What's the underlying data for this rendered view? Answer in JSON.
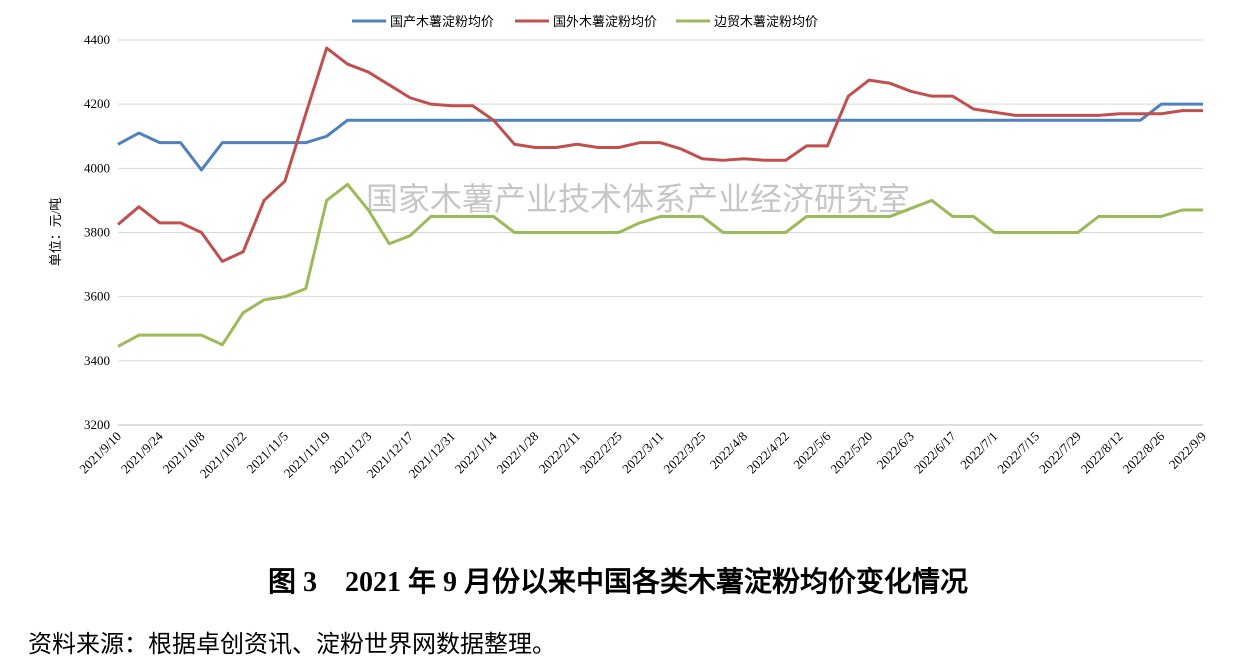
{
  "chart_data": {
    "type": "line",
    "title": "图 3　2021 年 9 月份以来中国各类木薯淀粉均价变化情况",
    "source": "资料来源：根据卓创资讯、淀粉世界网数据整理。",
    "watermark": "国家木薯产业技术体系产业经济研究室",
    "y_label": "单位：元/吨",
    "legend": "top",
    "grid": true,
    "categories": [
      "2021/9/10",
      null,
      "2021/9/24",
      null,
      "2021/10/8",
      null,
      "2021/10/22",
      null,
      "2021/11/5",
      null,
      "2021/11/19",
      null,
      "2021/12/3",
      null,
      "2021/12/17",
      null,
      "2021/12/31",
      null,
      "2022/1/14",
      null,
      "2022/1/28",
      null,
      "2022/2/11",
      null,
      "2022/2/25",
      null,
      "2022/3/11",
      null,
      "2022/3/25",
      null,
      "2022/4/8",
      null,
      "2022/4/22",
      null,
      "2022/5/6",
      null,
      "2022/5/20",
      null,
      "2022/6/3",
      null,
      "2022/6/17",
      null,
      "2022/7/1",
      null,
      "2022/7/15",
      null,
      "2022/7/29",
      null,
      "2022/8/12",
      null,
      "2022/8/26",
      null,
      "2022/9/9"
    ],
    "ylim": [
      3200,
      4400
    ],
    "yticks": [
      3200,
      3400,
      3600,
      3800,
      4000,
      4200,
      4400
    ],
    "series": [
      {
        "name": "国产木薯淀粉均价",
        "color": "#4f81bd",
        "values": [
          4075,
          4110,
          4080,
          4080,
          3995,
          4080,
          4080,
          4080,
          4080,
          4080,
          4100,
          4150,
          4150,
          4150,
          4150,
          4150,
          4150,
          4150,
          4150,
          4150,
          4150,
          4150,
          4150,
          4150,
          4150,
          4150,
          4150,
          4150,
          4150,
          4150,
          4150,
          4150,
          4150,
          4150,
          4150,
          4150,
          4150,
          4150,
          4150,
          4150,
          4150,
          4150,
          4150,
          4150,
          4150,
          4150,
          4150,
          4150,
          4150,
          4150,
          4200,
          4200,
          4200
        ]
      },
      {
        "name": "国外木薯淀粉均价",
        "color": "#c0504d",
        "values": [
          3825,
          3880,
          3830,
          3830,
          3800,
          3710,
          3740,
          3900,
          3960,
          4170,
          4375,
          4325,
          4300,
          4260,
          4220,
          4200,
          4195,
          4195,
          4150,
          4075,
          4065,
          4065,
          4075,
          4065,
          4065,
          4080,
          4080,
          4060,
          4030,
          4025,
          4030,
          4025,
          4025,
          4070,
          4070,
          4225,
          4275,
          4265,
          4240,
          4225,
          4225,
          4185,
          4175,
          4165,
          4165,
          4165,
          4165,
          4165,
          4170,
          4170,
          4170,
          4180,
          4180
        ]
      },
      {
        "name": "边贸木薯淀粉均价",
        "color": "#9bbb59",
        "values": [
          3445,
          3480,
          3480,
          3480,
          3480,
          3450,
          3550,
          3590,
          3600,
          3625,
          3900,
          3950,
          3870,
          3765,
          3790,
          3850,
          3850,
          3850,
          3850,
          3800,
          3800,
          3800,
          3800,
          3800,
          3800,
          3830,
          3850,
          3850,
          3850,
          3800,
          3800,
          3800,
          3800,
          3850,
          3850,
          3850,
          3850,
          3850,
          3875,
          3900,
          3850,
          3850,
          3800,
          3800,
          3800,
          3800,
          3800,
          3850,
          3850,
          3850,
          3850,
          3870,
          3870
        ]
      }
    ]
  }
}
